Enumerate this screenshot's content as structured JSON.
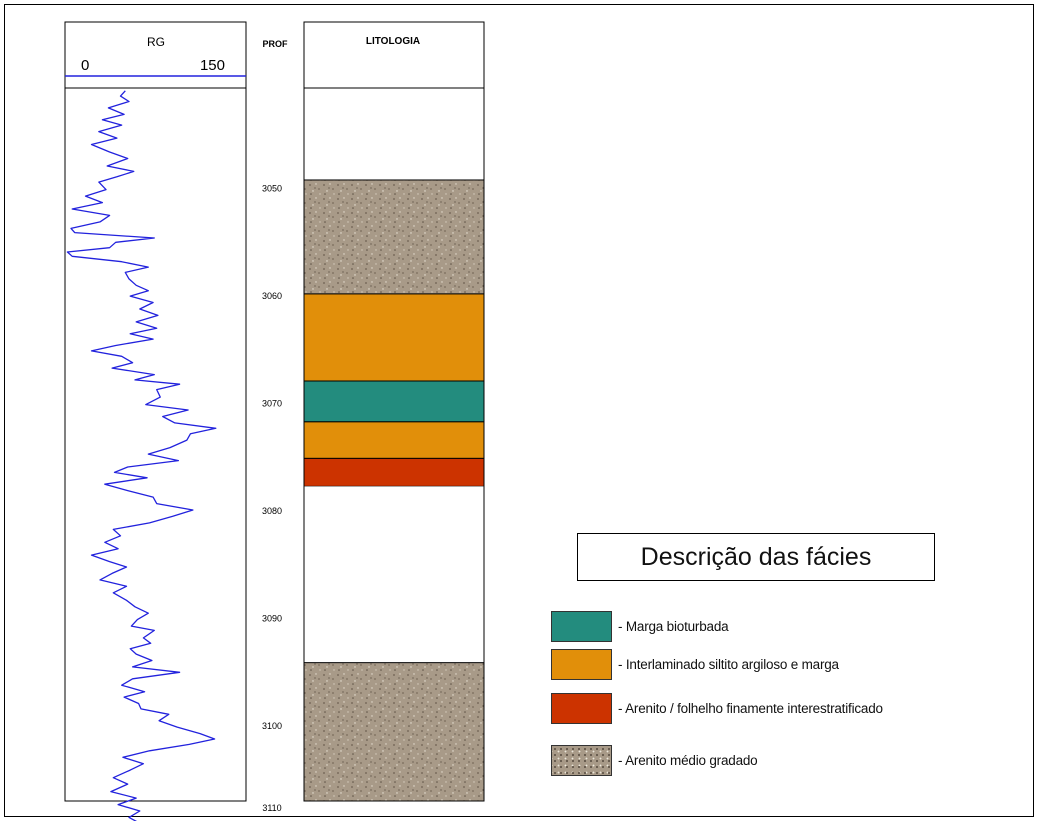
{
  "gr_track": {
    "title": "RG",
    "scale_min": "0",
    "scale_max": "150",
    "curve_color": "#2222dd"
  },
  "depth_track": {
    "title": "PROF",
    "ticks": [
      "3050",
      "3060",
      "3070",
      "3080",
      "3090",
      "3100",
      "3110"
    ]
  },
  "lithology_track": {
    "title": "LITOLOGIA"
  },
  "chart_data": {
    "type": "line",
    "depth_axis": {
      "label": "PROF",
      "range": [
        3041,
        3110
      ]
    },
    "gr_axis": {
      "label": "RG",
      "range": [
        0,
        150
      ]
    },
    "gr_curve": [
      [
        3041.0,
        50
      ],
      [
        3041.5,
        46
      ],
      [
        3042,
        53
      ],
      [
        3042.6,
        36
      ],
      [
        3043.2,
        49
      ],
      [
        3043.7,
        31
      ],
      [
        3044.2,
        47
      ],
      [
        3044.8,
        28
      ],
      [
        3045.4,
        43
      ],
      [
        3046.0,
        22
      ],
      [
        3046.7,
        37
      ],
      [
        3047.3,
        52
      ],
      [
        3048.0,
        35
      ],
      [
        3048.5,
        57
      ],
      [
        3049.0,
        43
      ],
      [
        3049.5,
        28
      ],
      [
        3050.2,
        34
      ],
      [
        3050.8,
        17
      ],
      [
        3051.4,
        31
      ],
      [
        3052.0,
        6
      ],
      [
        3052.6,
        37
      ],
      [
        3053.2,
        29
      ],
      [
        3053.8,
        5
      ],
      [
        3054.2,
        8
      ],
      [
        3054.7,
        74
      ],
      [
        3055.1,
        42
      ],
      [
        3055.6,
        37
      ],
      [
        3056.0,
        2
      ],
      [
        3056.4,
        6
      ],
      [
        3056.9,
        47
      ],
      [
        3057.4,
        69
      ],
      [
        3057.9,
        50
      ],
      [
        3058.5,
        53
      ],
      [
        3059.1,
        59
      ],
      [
        3059.6,
        69
      ],
      [
        3060.1,
        54
      ],
      [
        3060.7,
        73
      ],
      [
        3061.3,
        62
      ],
      [
        3061.9,
        77
      ],
      [
        3062.5,
        59
      ],
      [
        3063.1,
        76
      ],
      [
        3063.6,
        54
      ],
      [
        3064.1,
        73
      ],
      [
        3064.7,
        42
      ],
      [
        3065.2,
        22
      ],
      [
        3065.7,
        47
      ],
      [
        3066.3,
        56
      ],
      [
        3066.8,
        39
      ],
      [
        3067.4,
        74
      ],
      [
        3067.9,
        58
      ],
      [
        3068.3,
        95
      ],
      [
        3068.8,
        76
      ],
      [
        3069.5,
        79
      ],
      [
        3070.2,
        67
      ],
      [
        3070.7,
        102
      ],
      [
        3071.3,
        81
      ],
      [
        3071.9,
        91
      ],
      [
        3072.4,
        125
      ],
      [
        3072.9,
        104
      ],
      [
        3073.5,
        101
      ],
      [
        3074.2,
        87
      ],
      [
        3074.8,
        69
      ],
      [
        3075.4,
        94
      ],
      [
        3076.0,
        52
      ],
      [
        3076.5,
        41
      ],
      [
        3077.0,
        68
      ],
      [
        3077.6,
        33
      ],
      [
        3078.2,
        52
      ],
      [
        3078.8,
        73
      ],
      [
        3079.4,
        76
      ],
      [
        3080.0,
        106
      ],
      [
        3080.6,
        89
      ],
      [
        3081.2,
        70
      ],
      [
        3081.8,
        40
      ],
      [
        3082.4,
        46
      ],
      [
        3083.0,
        33
      ],
      [
        3083.6,
        44
      ],
      [
        3084.2,
        22
      ],
      [
        3084.8,
        37
      ],
      [
        3085.3,
        51
      ],
      [
        3085.9,
        39
      ],
      [
        3086.5,
        29
      ],
      [
        3087.1,
        51
      ],
      [
        3087.7,
        40
      ],
      [
        3088.4,
        51
      ],
      [
        3089.0,
        58
      ],
      [
        3089.6,
        69
      ],
      [
        3090.2,
        60
      ],
      [
        3090.8,
        55
      ],
      [
        3091.2,
        74
      ],
      [
        3091.9,
        65
      ],
      [
        3092.4,
        71
      ],
      [
        3092.9,
        54
      ],
      [
        3093.4,
        59
      ],
      [
        3094.0,
        72
      ],
      [
        3094.6,
        56
      ],
      [
        3095.1,
        95
      ],
      [
        3095.7,
        56
      ],
      [
        3096.3,
        47
      ],
      [
        3096.9,
        66
      ],
      [
        3097.4,
        49
      ],
      [
        3098.0,
        61
      ],
      [
        3098.5,
        63
      ],
      [
        3099.0,
        86
      ],
      [
        3099.6,
        78
      ],
      [
        3100.2,
        93
      ],
      [
        3100.8,
        112
      ],
      [
        3101.3,
        124
      ],
      [
        3101.8,
        103
      ],
      [
        3102.4,
        70
      ],
      [
        3103.0,
        48
      ],
      [
        3103.6,
        65
      ],
      [
        3104.2,
        54
      ],
      [
        3104.9,
        40
      ],
      [
        3105.5,
        52
      ],
      [
        3106.2,
        38
      ],
      [
        3106.8,
        59
      ],
      [
        3107.4,
        44
      ],
      [
        3108.0,
        62
      ],
      [
        3108.6,
        53
      ],
      [
        3109.2,
        63
      ],
      [
        3109.8,
        57
      ]
    ],
    "lithology_intervals": [
      {
        "top": 3041.0,
        "base": 3049.3,
        "facies": "blank"
      },
      {
        "top": 3049.3,
        "base": 3059.9,
        "facies": "arenito_medio_gradado"
      },
      {
        "top": 3059.9,
        "base": 3068.0,
        "facies": "interlaminado"
      },
      {
        "top": 3068.0,
        "base": 3071.8,
        "facies": "marga_bioturbada"
      },
      {
        "top": 3071.8,
        "base": 3075.2,
        "facies": "interlaminado"
      },
      {
        "top": 3075.2,
        "base": 3077.8,
        "facies": "arenito_folhelho"
      },
      {
        "top": 3077.8,
        "base": 3094.2,
        "facies": "blank"
      },
      {
        "top": 3094.2,
        "base": 3110.0,
        "facies": "arenito_medio_gradado"
      }
    ]
  },
  "facies_colors": {
    "blank": "#ffffff",
    "marga_bioturbada": "#238c7e",
    "interlaminado": "#e18f0a",
    "arenito_folhelho": "#cc3300",
    "arenito_medio_gradado": "#a89a88"
  },
  "legend": {
    "title": "Descrição das fácies",
    "items": [
      {
        "facies": "marga_bioturbada",
        "label": "- Marga bioturbada"
      },
      {
        "facies": "interlaminado",
        "label": "- Interlaminado siltito argiloso e marga"
      },
      {
        "facies": "arenito_folhelho",
        "label": "- Arenito / folhelho finamente interestratificado"
      },
      {
        "facies": "arenito_medio_gradado",
        "label": "- Arenito médio gradado"
      }
    ]
  }
}
